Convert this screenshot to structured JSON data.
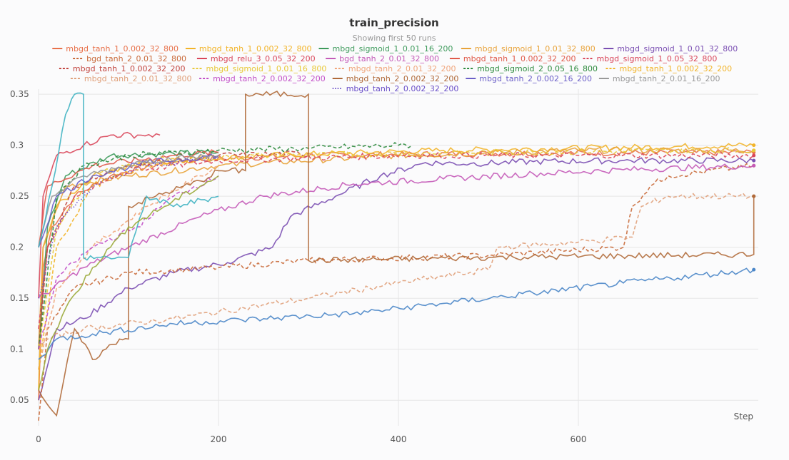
{
  "chart_data": {
    "type": "line",
    "title": "train_precision",
    "subtitle": "Showing first 50 runs",
    "xlabel": "Step",
    "ylabel": "",
    "xlim": [
      0,
      800
    ],
    "ylim": [
      0.025,
      0.355
    ],
    "x_ticks": [
      0,
      200,
      400,
      600
    ],
    "y_ticks": [
      0.05,
      0.1,
      0.15,
      0.2,
      0.25,
      0.3,
      0.35
    ],
    "grid": true,
    "legend_position": "top",
    "series": [
      {
        "name": "mbgd_tanh_1_0.002_32_800",
        "color": "#e8714a",
        "dash": "solid",
        "points": [
          [
            0,
            0.05
          ],
          [
            5,
            0.18
          ],
          [
            15,
            0.22
          ],
          [
            40,
            0.25
          ],
          [
            80,
            0.27
          ],
          [
            150,
            0.285
          ],
          [
            300,
            0.29
          ],
          [
            500,
            0.292
          ],
          [
            795,
            0.293
          ]
        ]
      },
      {
        "name": "mbgd_tanh_1_0.002_32_800",
        "color": "#f2b429",
        "dash": "solid",
        "points": [
          [
            0,
            0.06
          ],
          [
            5,
            0.2
          ],
          [
            20,
            0.24
          ],
          [
            60,
            0.27
          ],
          [
            120,
            0.283
          ],
          [
            250,
            0.29
          ],
          [
            450,
            0.295
          ],
          [
            795,
            0.3
          ]
        ]
      },
      {
        "name": "mbgd_sigmoid_1_0.01_16_200",
        "color": "#3d9a5b",
        "dash": "solid",
        "points": [
          [
            0,
            0.1
          ],
          [
            10,
            0.22
          ],
          [
            30,
            0.27
          ],
          [
            80,
            0.29
          ],
          [
            150,
            0.292
          ],
          [
            200,
            0.293
          ]
        ]
      },
      {
        "name": "mbgd_sigmoid_1_0.01_32_800",
        "color": "#e8a33a",
        "dash": "solid",
        "points": [
          [
            0,
            0.1
          ],
          [
            5,
            0.2
          ],
          [
            30,
            0.26
          ],
          [
            100,
            0.27
          ],
          [
            200,
            0.28
          ],
          [
            400,
            0.29
          ],
          [
            600,
            0.295
          ],
          [
            795,
            0.295
          ]
        ]
      },
      {
        "name": "mbgd_sigmoid_1_0.01_32_800",
        "color": "#7b4fb3",
        "dash": "solid",
        "points": [
          [
            0,
            0.05
          ],
          [
            20,
            0.12
          ],
          [
            50,
            0.13
          ],
          [
            100,
            0.16
          ],
          [
            150,
            0.175
          ],
          [
            210,
            0.185
          ],
          [
            260,
            0.2
          ],
          [
            280,
            0.23
          ],
          [
            330,
            0.25
          ],
          [
            380,
            0.27
          ],
          [
            430,
            0.283
          ],
          [
            480,
            0.282
          ],
          [
            550,
            0.284
          ],
          [
            650,
            0.285
          ],
          [
            795,
            0.285
          ]
        ]
      },
      {
        "name": "bgd_tanh_2_0.01_32_800",
        "color": "#c96a3a",
        "dash": "dashed",
        "points": [
          [
            0,
            0.03
          ],
          [
            10,
            0.12
          ],
          [
            40,
            0.16
          ],
          [
            100,
            0.175
          ],
          [
            200,
            0.18
          ],
          [
            300,
            0.187
          ],
          [
            500,
            0.192
          ],
          [
            650,
            0.2
          ],
          [
            660,
            0.24
          ],
          [
            680,
            0.26
          ],
          [
            700,
            0.27
          ],
          [
            795,
            0.28
          ]
        ]
      },
      {
        "name": "mbgd_relu_3_0.05_32_200",
        "color": "#d9465a",
        "dash": "solid",
        "points": [
          [
            0,
            0.15
          ],
          [
            5,
            0.25
          ],
          [
            20,
            0.29
          ],
          [
            50,
            0.3
          ],
          [
            80,
            0.31
          ],
          [
            110,
            0.31
          ],
          [
            135,
            0.31
          ]
        ]
      },
      {
        "name": "bgd_tanh_2_0.01_32_800",
        "color": "#c45ab8",
        "dash": "solid",
        "points": [
          [
            0,
            0.15
          ],
          [
            50,
            0.18
          ],
          [
            100,
            0.2
          ],
          [
            180,
            0.23
          ],
          [
            250,
            0.25
          ],
          [
            350,
            0.262
          ],
          [
            450,
            0.267
          ],
          [
            550,
            0.272
          ],
          [
            650,
            0.276
          ],
          [
            795,
            0.28
          ]
        ]
      },
      {
        "name": "mbgd_tanh_1_0.002_32_200",
        "color": "#e05a4a",
        "dash": "solid",
        "points": [
          [
            0,
            0.2
          ],
          [
            10,
            0.26
          ],
          [
            60,
            0.28
          ],
          [
            150,
            0.29
          ],
          [
            200,
            0.293
          ]
        ]
      },
      {
        "name": "mbgd_sigmoid_1_0.05_32_800",
        "color": "#d9465a",
        "dash": "dashed",
        "points": [
          [
            0,
            0.12
          ],
          [
            10,
            0.2
          ],
          [
            40,
            0.25
          ],
          [
            100,
            0.275
          ],
          [
            200,
            0.285
          ],
          [
            400,
            0.29
          ],
          [
            795,
            0.29
          ]
        ]
      },
      {
        "name": "mbgd_tanh_1_0.002_32_200",
        "color": "#c2453f",
        "dash": "dashed",
        "points": [
          [
            0,
            0.1
          ],
          [
            10,
            0.2
          ],
          [
            40,
            0.26
          ],
          [
            100,
            0.28
          ],
          [
            200,
            0.29
          ],
          [
            300,
            0.292
          ]
        ]
      },
      {
        "name": "mbgd_sigmoid_1_0.01_16_800",
        "color": "#e8c93a",
        "dash": "dashed",
        "points": [
          [
            0,
            0.1
          ],
          [
            20,
            0.22
          ],
          [
            60,
            0.27
          ],
          [
            120,
            0.285
          ],
          [
            250,
            0.29
          ],
          [
            500,
            0.293
          ],
          [
            795,
            0.295
          ]
        ]
      },
      {
        "name": "mbgd_tanh_2_0.01_32_200",
        "color": "#f0a57a",
        "dash": "dashed",
        "points": [
          [
            0,
            0.08
          ],
          [
            20,
            0.16
          ],
          [
            60,
            0.2
          ],
          [
            120,
            0.24
          ],
          [
            180,
            0.27
          ],
          [
            200,
            0.28
          ]
        ]
      },
      {
        "name": "mbgd_sigmoid_2_0.05_16_800",
        "color": "#2e8b3e",
        "dash": "dashed",
        "points": [
          [
            0,
            0.1
          ],
          [
            20,
            0.25
          ],
          [
            50,
            0.28
          ],
          [
            100,
            0.29
          ],
          [
            200,
            0.295
          ],
          [
            300,
            0.297
          ],
          [
            400,
            0.3
          ],
          [
            415,
            0.3
          ]
        ]
      },
      {
        "name": "mbgd_tanh_1_0.002_32_200",
        "color": "#f2b429",
        "dash": "dashed",
        "points": [
          [
            0,
            0.08
          ],
          [
            20,
            0.2
          ],
          [
            60,
            0.26
          ],
          [
            120,
            0.28
          ],
          [
            200,
            0.29
          ]
        ]
      },
      {
        "name": "mbgd_tanh_2_0.01_32_800",
        "color": "#e0a07a",
        "dash": "dashed",
        "points": [
          [
            0,
            0.1
          ],
          [
            10,
            0.11
          ],
          [
            50,
            0.12
          ],
          [
            150,
            0.13
          ],
          [
            300,
            0.15
          ],
          [
            400,
            0.165
          ],
          [
            500,
            0.178
          ],
          [
            510,
            0.2
          ],
          [
            600,
            0.205
          ],
          [
            660,
            0.21
          ],
          [
            670,
            0.24
          ],
          [
            700,
            0.25
          ],
          [
            795,
            0.25
          ]
        ]
      },
      {
        "name": "mbgd_tanh_2_0.002_32_200",
        "color": "#c24fc8",
        "dash": "dashed",
        "points": [
          [
            0,
            0.1
          ],
          [
            20,
            0.17
          ],
          [
            60,
            0.2
          ],
          [
            110,
            0.22
          ],
          [
            150,
            0.25
          ],
          [
            200,
            0.27
          ]
        ]
      },
      {
        "name": "mbgd_tanh_2_0.002_32_200",
        "color": "#b06a3a",
        "dash": "solid",
        "points": [
          [
            0,
            0.06
          ],
          [
            15,
            0.04
          ],
          [
            20,
            0.035
          ],
          [
            40,
            0.12
          ],
          [
            60,
            0.09
          ],
          [
            90,
            0.11
          ],
          [
            100,
            0.11
          ],
          [
            100,
            0.24
          ],
          [
            130,
            0.25
          ],
          [
            180,
            0.265
          ],
          [
            200,
            0.275
          ],
          [
            230,
            0.275
          ],
          [
            230,
            0.35
          ],
          [
            300,
            0.35
          ],
          [
            300,
            0.187
          ],
          [
            500,
            0.19
          ],
          [
            795,
            0.193
          ],
          [
            795,
            0.25
          ]
        ]
      },
      {
        "name": "mbgd_tanh_2_0.002_16_200",
        "color": "#6b5fc8",
        "dash": "solid",
        "points": [
          [
            0,
            0.2
          ],
          [
            20,
            0.25
          ],
          [
            60,
            0.27
          ],
          [
            120,
            0.283
          ],
          [
            200,
            0.29
          ]
        ]
      },
      {
        "name": "mbgd_tanh_2_0.01_16_200",
        "color": "#999999",
        "dash": "solid",
        "points": [
          [
            0,
            0.2
          ],
          [
            15,
            0.25
          ],
          [
            50,
            0.27
          ],
          [
            120,
            0.285
          ],
          [
            200,
            0.29
          ]
        ]
      },
      {
        "name": "mbgd_tanh_2_0.002_32_200",
        "color": "#6a4fc8",
        "dash": "dotted",
        "points": [
          [
            0,
            0.15
          ],
          [
            20,
            0.22
          ],
          [
            60,
            0.26
          ],
          [
            120,
            0.28
          ],
          [
            200,
            0.288
          ]
        ]
      },
      {
        "name": "",
        "color": "#4a86c8",
        "dash": "solid",
        "points": [
          [
            0,
            0.09
          ],
          [
            20,
            0.11
          ],
          [
            60,
            0.115
          ],
          [
            150,
            0.125
          ],
          [
            250,
            0.13
          ],
          [
            350,
            0.135
          ],
          [
            450,
            0.145
          ],
          [
            550,
            0.155
          ],
          [
            650,
            0.165
          ],
          [
            795,
            0.178
          ]
        ]
      },
      {
        "name": "",
        "color": "#3fb3c2",
        "dash": "solid",
        "points": [
          [
            0,
            0.2
          ],
          [
            15,
            0.26
          ],
          [
            30,
            0.33
          ],
          [
            40,
            0.35
          ],
          [
            50,
            0.35
          ],
          [
            50,
            0.19
          ],
          [
            100,
            0.19
          ],
          [
            120,
            0.25
          ],
          [
            150,
            0.24
          ],
          [
            200,
            0.25
          ]
        ]
      },
      {
        "name": "",
        "color": "#9aaa3a",
        "dash": "solid",
        "points": [
          [
            0,
            0.06
          ],
          [
            10,
            0.1
          ],
          [
            30,
            0.14
          ],
          [
            60,
            0.18
          ],
          [
            80,
            0.2
          ],
          [
            100,
            0.22
          ],
          [
            140,
            0.24
          ],
          [
            180,
            0.26
          ],
          [
            200,
            0.27
          ]
        ]
      }
    ]
  }
}
